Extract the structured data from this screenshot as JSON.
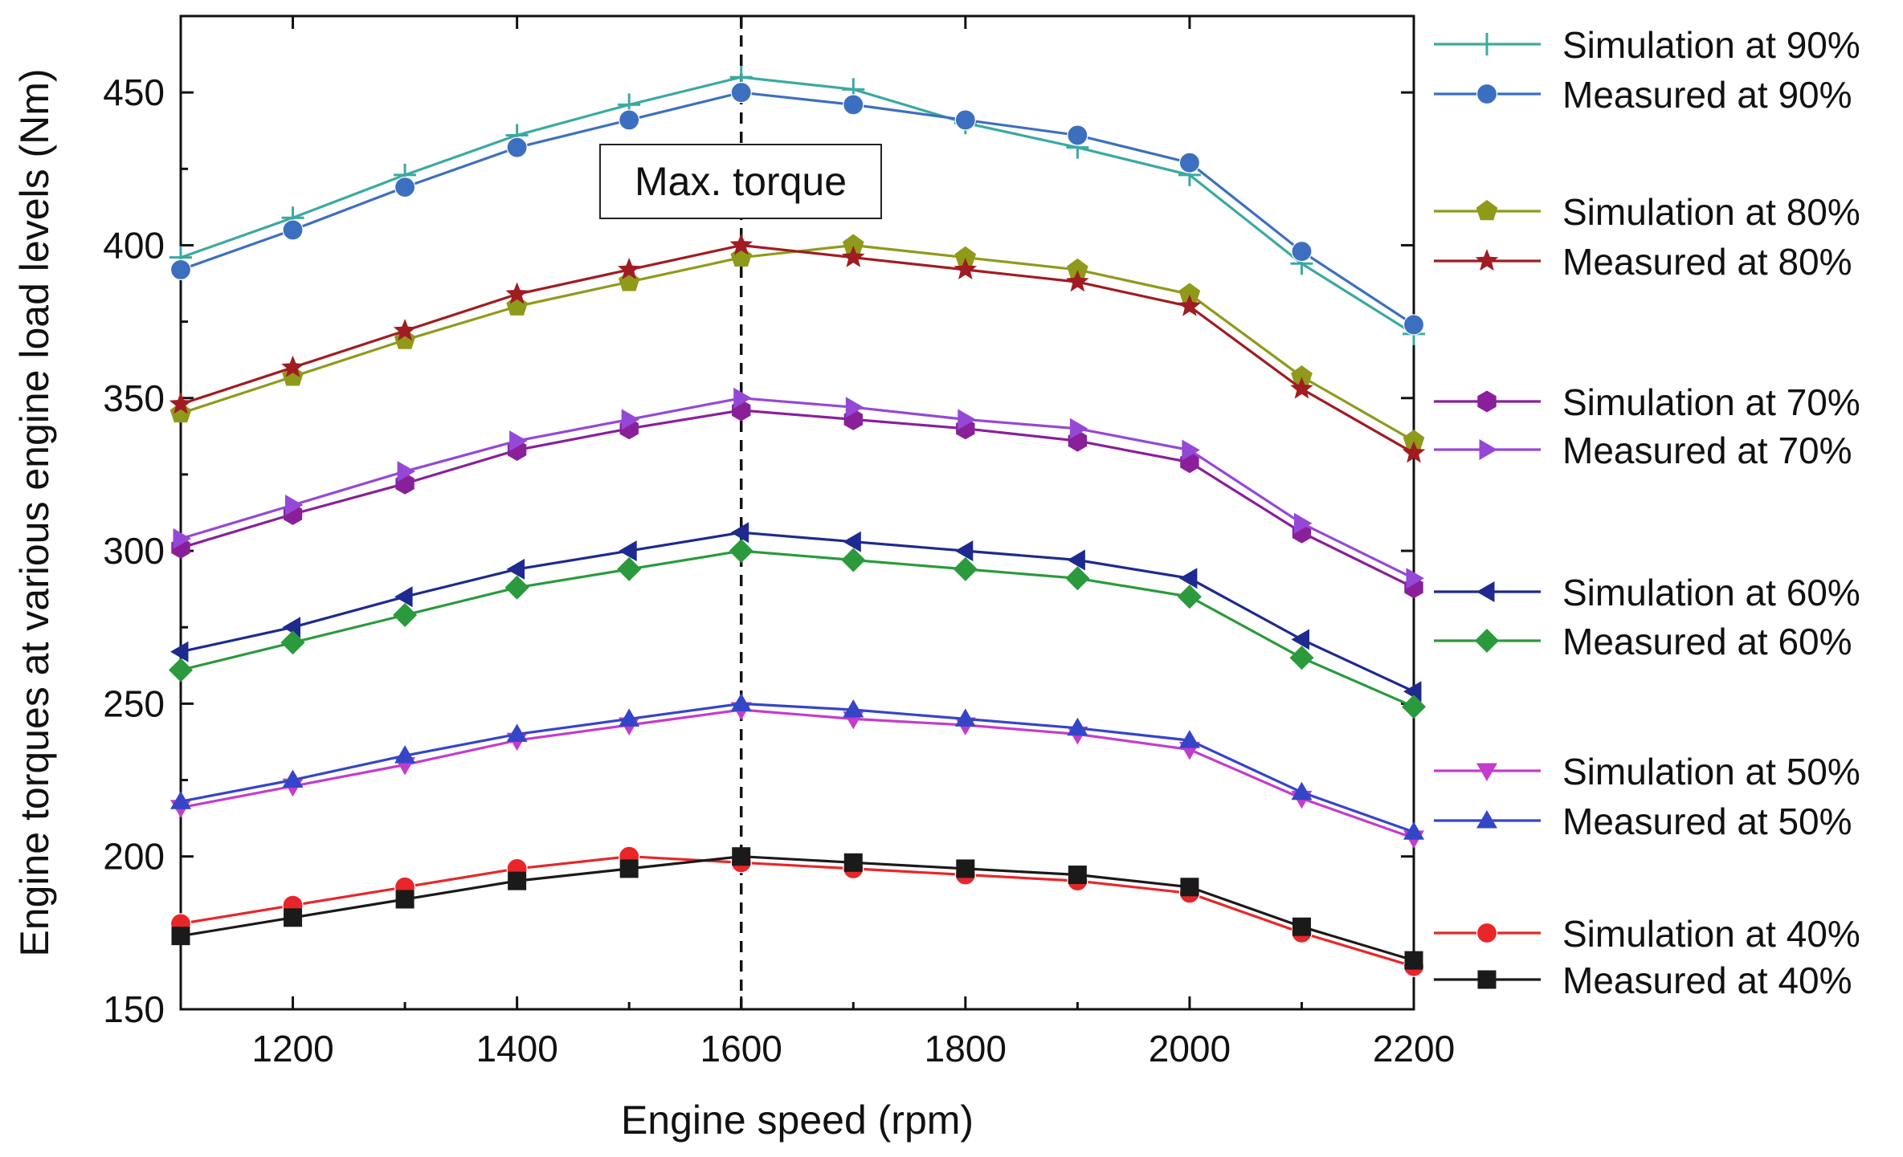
{
  "chart_data": {
    "type": "line",
    "title": "",
    "xlabel": "Engine speed (rpm)",
    "ylabel": "Engine torques at various engine load levels (Nm)",
    "xlim": [
      1100,
      2200
    ],
    "ylim": [
      150,
      475
    ],
    "xticks": [
      1200,
      1400,
      1600,
      1800,
      2000,
      2200
    ],
    "yticks": [
      150,
      200,
      250,
      300,
      350,
      400,
      450
    ],
    "x": [
      1100,
      1200,
      1300,
      1400,
      1500,
      1600,
      1700,
      1800,
      1900,
      2000,
      2100,
      2200
    ],
    "reference_line": {
      "x": 1600,
      "style": "dashed",
      "label": "Max. torque"
    },
    "legend_position": "right, outside plot",
    "series": [
      {
        "name": "Simulation at 90%",
        "color": "#3aaaa0",
        "marker": "plus",
        "values": [
          396,
          409,
          423,
          436,
          446,
          455,
          451,
          440,
          432,
          423,
          394,
          371
        ]
      },
      {
        "name": "Measured at 90%",
        "color": "#3d6fc0",
        "marker": "circle",
        "values": [
          392,
          405,
          419,
          432,
          441,
          450,
          446,
          441,
          436,
          427,
          398,
          374
        ]
      },
      {
        "name": "Simulation at 80%",
        "color": "#8f9a1a",
        "marker": "pentagon",
        "values": [
          345,
          357,
          369,
          380,
          388,
          396,
          400,
          396,
          392,
          384,
          357,
          336
        ]
      },
      {
        "name": "Measured at 80%",
        "color": "#a01c22",
        "marker": "star",
        "values": [
          348,
          360,
          372,
          384,
          392,
          400,
          396,
          392,
          388,
          380,
          353,
          332
        ]
      },
      {
        "name": "Simulation at 70%",
        "color": "#8a1f9a",
        "marker": "hexagon",
        "values": [
          301,
          312,
          322,
          333,
          340,
          346,
          343,
          340,
          336,
          329,
          306,
          288
        ]
      },
      {
        "name": "Measured at 70%",
        "color": "#9548d6",
        "marker": "triangle-right",
        "values": [
          304,
          315,
          326,
          336,
          343,
          350,
          347,
          343,
          340,
          333,
          309,
          291
        ]
      },
      {
        "name": "Simulation at 60%",
        "color": "#1e2a8f",
        "marker": "triangle-left",
        "values": [
          267,
          275,
          285,
          294,
          300,
          306,
          303,
          300,
          297,
          291,
          271,
          254
        ]
      },
      {
        "name": "Measured at 60%",
        "color": "#2a9a3c",
        "marker": "diamond",
        "values": [
          261,
          270,
          279,
          288,
          294,
          300,
          297,
          294,
          291,
          285,
          265,
          249
        ]
      },
      {
        "name": "Simulation at 50%",
        "color": "#c43ccc",
        "marker": "triangle-down",
        "values": [
          216,
          223,
          230,
          238,
          243,
          248,
          245,
          243,
          240,
          235,
          219,
          206
        ]
      },
      {
        "name": "Measured at 50%",
        "color": "#3545c8",
        "marker": "triangle-up",
        "values": [
          218,
          225,
          233,
          240,
          245,
          250,
          248,
          245,
          242,
          238,
          221,
          208
        ]
      },
      {
        "name": "Simulation at 40%",
        "color": "#e8262a",
        "marker": "circle",
        "values": [
          178,
          184,
          190,
          196,
          200,
          198,
          196,
          194,
          192,
          188,
          175,
          164
        ]
      },
      {
        "name": "Measured at 40%",
        "color": "#1a1a1a",
        "marker": "square",
        "values": [
          174,
          180,
          186,
          192,
          196,
          200,
          198,
          196,
          194,
          190,
          177,
          166
        ]
      }
    ]
  }
}
